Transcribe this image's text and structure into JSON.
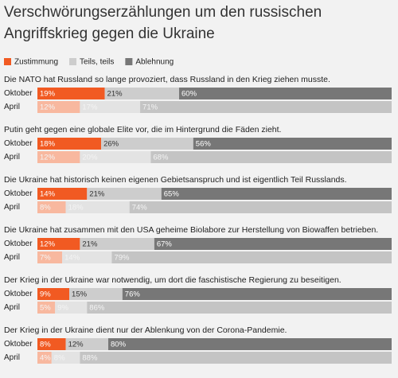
{
  "chart_data": {
    "type": "stacked-bar-horizontal",
    "title": [
      "Verschwörungserzählungen um den russischen",
      "Angriffskrieg gegen die Ukraine"
    ],
    "xlim": [
      0,
      100
    ],
    "series": [
      {
        "name": "Zustimmung",
        "color": "#f15a22",
        "faded_color": "#f8b89f"
      },
      {
        "name": "Teils, teils",
        "color": "#cdcdcd",
        "faded_color": "#e3e3e3"
      },
      {
        "name": "Ablehnung",
        "color": "#777777",
        "faded_color": "#c4c4c4"
      }
    ],
    "groups": [
      {
        "question": "Die NATO hat Russland so lange provoziert, dass Russland in den Krieg ziehen musste.",
        "rows": [
          {
            "label": "Oktober",
            "values": [
              19,
              21,
              60
            ],
            "value_labels": [
              "19%",
              "21%",
              "60%"
            ]
          },
          {
            "label": "April",
            "faded": true,
            "values": [
              12,
              17,
              71
            ],
            "value_labels": [
              "12%",
              "17%",
              "71%"
            ]
          }
        ]
      },
      {
        "question": "Putin geht gegen eine globale Elite vor, die im Hintergrund die Fäden zieht.",
        "rows": [
          {
            "label": "Oktober",
            "values": [
              18,
              26,
              56
            ],
            "value_labels": [
              "18%",
              "26%",
              "56%"
            ]
          },
          {
            "label": "April",
            "faded": true,
            "values": [
              12,
              20,
              68
            ],
            "value_labels": [
              "12%",
              "20%",
              "68%"
            ]
          }
        ]
      },
      {
        "question": "Die Ukraine hat historisch keinen eigenen Gebietsanspruch und ist eigentlich Teil Russlands.",
        "rows": [
          {
            "label": "Oktober",
            "values": [
              14,
              21,
              65
            ],
            "value_labels": [
              "14%",
              "21%",
              "65%"
            ]
          },
          {
            "label": "April",
            "faded": true,
            "values": [
              8,
              18,
              74
            ],
            "value_labels": [
              "8%",
              "18%",
              "74%"
            ]
          }
        ]
      },
      {
        "question": "Die Ukraine hat zusammen mit den USA geheime Biolabore zur Herstellung von Biowaffen betrieben.",
        "rows": [
          {
            "label": "Oktober",
            "values": [
              12,
              21,
              67
            ],
            "value_labels": [
              "12%",
              "21%",
              "67%"
            ]
          },
          {
            "label": "April",
            "faded": true,
            "values": [
              7,
              14,
              79
            ],
            "value_labels": [
              "7%",
              "14%",
              "79%"
            ]
          }
        ]
      },
      {
        "question": "Der Krieg in der Ukraine war notwendig, um dort die faschistische Regierung zu beseitigen.",
        "rows": [
          {
            "label": "Oktober",
            "values": [
              9,
              15,
              76
            ],
            "value_labels": [
              "9%",
              "15%",
              "76%"
            ]
          },
          {
            "label": "April",
            "faded": true,
            "values": [
              5,
              9,
              86
            ],
            "value_labels": [
              "5%",
              "9%",
              "86%"
            ]
          }
        ]
      },
      {
        "question": "Der Krieg in der Ukraine dient nur der Ablenkung von der Corona-Pandemie.",
        "rows": [
          {
            "label": "Oktober",
            "values": [
              8,
              12,
              80
            ],
            "value_labels": [
              "8%",
              "12%",
              "80%"
            ]
          },
          {
            "label": "April",
            "faded": true,
            "values": [
              4,
              8,
              88
            ],
            "value_labels": [
              "4%",
              "8%",
              "88%"
            ]
          }
        ]
      }
    ]
  }
}
